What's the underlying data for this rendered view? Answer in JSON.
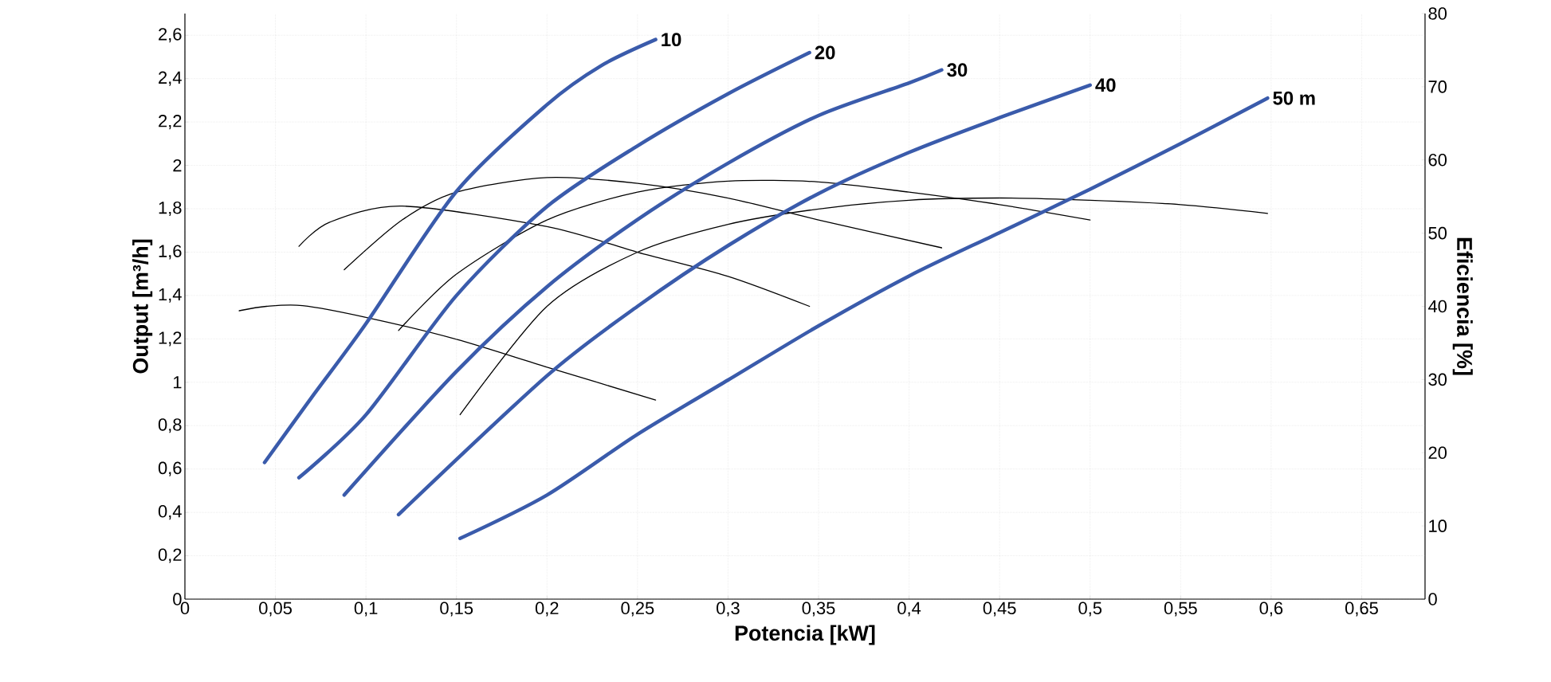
{
  "chart_data": {
    "type": "line",
    "xlabel": "Potencia [kW]",
    "ylabel": "Output [m³/h]",
    "y2label": "Eficiencia [%]",
    "xlim": [
      0,
      0.685
    ],
    "ylim": [
      0,
      2.7
    ],
    "y2lim": [
      0,
      80
    ],
    "xticks": [
      0,
      {
        "value": 0.05,
        "label": "0,05"
      },
      {
        "value": 0.1,
        "label": "0,1"
      },
      {
        "value": 0.15,
        "label": "0,15"
      },
      {
        "value": 0.2,
        "label": "0,2"
      },
      {
        "value": 0.25,
        "label": "0,25"
      },
      {
        "value": 0.3,
        "label": "0,3"
      },
      {
        "value": 0.35,
        "label": "0,35"
      },
      {
        "value": 0.4,
        "label": "0,4"
      },
      {
        "value": 0.45,
        "label": "0,45"
      },
      {
        "value": 0.5,
        "label": "0,5"
      },
      {
        "value": 0.55,
        "label": "0,55"
      },
      {
        "value": 0.6,
        "label": "0,6"
      },
      {
        "value": 0.65,
        "label": "0,65"
      }
    ],
    "yticks": [
      0,
      {
        "value": 0.2,
        "label": "0,2"
      },
      {
        "value": 0.4,
        "label": "0,4"
      },
      {
        "value": 0.6,
        "label": "0,6"
      },
      {
        "value": 0.8,
        "label": "0,8"
      },
      1,
      {
        "value": 1.2,
        "label": "1,2"
      },
      {
        "value": 1.4,
        "label": "1,4"
      },
      {
        "value": 1.6,
        "label": "1,6"
      },
      {
        "value": 1.8,
        "label": "1,8"
      },
      2,
      {
        "value": 2.2,
        "label": "2,2"
      },
      {
        "value": 2.4,
        "label": "2,4"
      },
      {
        "value": 2.6,
        "label": "2,6"
      }
    ],
    "y2ticks": [
      0,
      10,
      20,
      30,
      40,
      50,
      60,
      70,
      80
    ],
    "grid": true,
    "marker": "none",
    "series": [
      {
        "name": "10",
        "color": "#3a5bab",
        "x": [
          0.044,
          0.07,
          0.1,
          0.15,
          0.2,
          0.23,
          0.26
        ],
        "values": [
          0.63,
          0.93,
          1.27,
          1.88,
          2.28,
          2.46,
          2.58
        ]
      },
      {
        "name": "20",
        "color": "#3a5bab",
        "x": [
          0.063,
          0.1,
          0.15,
          0.2,
          0.25,
          0.3,
          0.345
        ],
        "values": [
          0.56,
          0.85,
          1.4,
          1.81,
          2.09,
          2.33,
          2.52
        ]
      },
      {
        "name": "30",
        "color": "#3a5bab",
        "x": [
          0.088,
          0.15,
          0.2,
          0.25,
          0.3,
          0.35,
          0.4,
          0.418
        ],
        "values": [
          0.48,
          1.05,
          1.44,
          1.75,
          2.01,
          2.23,
          2.38,
          2.44
        ]
      },
      {
        "name": "40",
        "color": "#3a5bab",
        "x": [
          0.118,
          0.2,
          0.25,
          0.3,
          0.35,
          0.4,
          0.45,
          0.5
        ],
        "values": [
          0.39,
          1.03,
          1.35,
          1.63,
          1.87,
          2.06,
          2.22,
          2.37
        ]
      },
      {
        "name": "50 m",
        "color": "#3a5bab",
        "x": [
          0.152,
          0.2,
          0.25,
          0.3,
          0.35,
          0.4,
          0.45,
          0.5,
          0.55,
          0.598
        ],
        "values": [
          0.28,
          0.48,
          0.76,
          1.01,
          1.26,
          1.49,
          1.69,
          1.89,
          2.1,
          2.31
        ]
      },
      {
        "color": "#000000",
        "axis": "y2",
        "x": [
          0.03,
          0.045,
          0.065,
          0.1,
          0.15,
          0.2,
          0.26
        ],
        "values": [
          39.4,
          40,
          40.1,
          38.5,
          35.5,
          31.7,
          27.2
        ]
      },
      {
        "color": "#000000",
        "axis": "y2",
        "x": [
          0.063,
          0.08,
          0.12,
          0.2,
          0.25,
          0.3,
          0.345
        ],
        "values": [
          48.2,
          51.5,
          53.7,
          50.9,
          47.4,
          44.1,
          40
        ]
      },
      {
        "color": "#000000",
        "axis": "y2",
        "x": [
          0.088,
          0.12,
          0.15,
          0.2,
          0.25,
          0.3,
          0.35,
          0.418
        ],
        "values": [
          45,
          51.8,
          55.6,
          57.6,
          56.8,
          54.8,
          51.8,
          48
        ]
      },
      {
        "color": "#000000",
        "axis": "y2",
        "x": [
          0.118,
          0.15,
          0.2,
          0.25,
          0.3,
          0.35,
          0.4,
          0.45,
          0.5
        ],
        "values": [
          36.7,
          44.4,
          51.8,
          55.6,
          57.1,
          57,
          55.6,
          53.9,
          51.8
        ]
      },
      {
        "color": "#000000",
        "axis": "y2",
        "x": [
          0.152,
          0.2,
          0.25,
          0.3,
          0.35,
          0.4,
          0.45,
          0.5,
          0.55,
          0.598
        ],
        "values": [
          25.2,
          40,
          47.4,
          51.2,
          53.3,
          54.5,
          54.8,
          54.5,
          53.9,
          52.7
        ]
      }
    ]
  }
}
